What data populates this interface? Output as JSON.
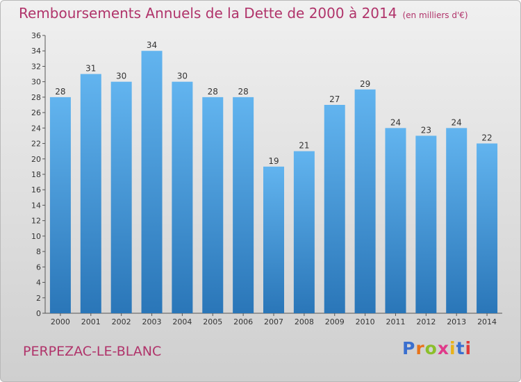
{
  "title": "Remboursements Annuels de la Dette de 2000 à 2014",
  "unit": "(en milliers d'€)",
  "commune": "PERPEZAC-LE-BLANC",
  "logo": {
    "letters": [
      "P",
      "r",
      "o",
      "x",
      "i",
      "t",
      "i"
    ],
    "colors": [
      "#3a6fcf",
      "#e8731a",
      "#8bbf2a",
      "#e03a8a",
      "#e8b21a",
      "#3a6fcf",
      "#e03a3a"
    ]
  },
  "colors": {
    "title": "#b0336a",
    "bar_top": "#62b4ef",
    "bar_bottom": "#2a76b8"
  },
  "chart_data": {
    "type": "bar",
    "title": "Remboursements Annuels de la Dette de 2000 à 2014",
    "categories": [
      "2000",
      "2001",
      "2002",
      "2003",
      "2004",
      "2005",
      "2006",
      "2007",
      "2008",
      "2009",
      "2010",
      "2011",
      "2012",
      "2013",
      "2014"
    ],
    "values": [
      28,
      31,
      30,
      34,
      30,
      28,
      28,
      19,
      21,
      27,
      29,
      24,
      23,
      24,
      22
    ],
    "ylim": [
      0,
      36
    ],
    "yticks": [
      0,
      2,
      4,
      6,
      8,
      10,
      12,
      14,
      16,
      18,
      20,
      22,
      24,
      26,
      28,
      30,
      32,
      34,
      36
    ],
    "grid": false,
    "legend": "none"
  }
}
